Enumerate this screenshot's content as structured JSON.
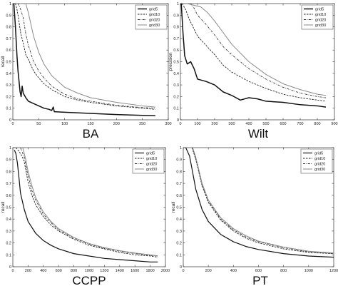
{
  "chart_data": [
    {
      "type": "line",
      "title": "BA",
      "xlabel": "",
      "ylabel": "recall",
      "xlim": [
        0,
        300
      ],
      "ylim": [
        0,
        1
      ],
      "xticks": [
        "0",
        "50",
        "100",
        "150",
        "200",
        "250",
        "300"
      ],
      "yticks": [
        "0",
        "0.1",
        "0.2",
        "0.3",
        "0.4",
        "0.5",
        "0.6",
        "0.7",
        "0.8",
        "0.9",
        "1"
      ],
      "legend": "top-right",
      "grid": false,
      "series": [
        {
          "name": "grid5",
          "style": "solid-thick",
          "color": "#111111",
          "x": [
            2,
            5,
            8,
            10,
            12,
            14,
            16,
            18,
            20,
            25,
            30,
            40,
            50,
            60,
            70,
            75,
            78,
            80,
            100,
            150,
            200,
            250,
            275
          ],
          "y": [
            1.0,
            0.8,
            0.55,
            0.42,
            0.33,
            0.24,
            0.2,
            0.29,
            0.23,
            0.19,
            0.16,
            0.14,
            0.12,
            0.1,
            0.09,
            0.08,
            0.11,
            0.07,
            0.065,
            0.055,
            0.045,
            0.038,
            0.035
          ]
        },
        {
          "name": "grid10",
          "style": "dashed",
          "color": "#222222",
          "x": [
            5,
            8,
            10,
            15,
            20,
            25,
            30,
            40,
            50,
            60,
            75,
            100,
            125,
            150,
            200,
            250,
            275
          ],
          "y": [
            1.0,
            0.95,
            0.9,
            0.75,
            0.66,
            0.56,
            0.52,
            0.42,
            0.36,
            0.31,
            0.26,
            0.2,
            0.17,
            0.15,
            0.12,
            0.1,
            0.09
          ]
        },
        {
          "name": "grid20",
          "style": "dashdot",
          "color": "#333333",
          "x": [
            10,
            15,
            20,
            25,
            30,
            40,
            50,
            60,
            75,
            100,
            125,
            150,
            200,
            250,
            275
          ],
          "y": [
            1.0,
            0.95,
            0.88,
            0.74,
            0.64,
            0.5,
            0.42,
            0.36,
            0.29,
            0.22,
            0.18,
            0.16,
            0.125,
            0.105,
            0.1
          ]
        },
        {
          "name": "grid30",
          "style": "solid-gray",
          "color": "#8a8a8a",
          "x": [
            25,
            30,
            35,
            40,
            50,
            60,
            75,
            100,
            125,
            150,
            200,
            250,
            275
          ],
          "y": [
            1.0,
            0.92,
            0.82,
            0.72,
            0.58,
            0.48,
            0.38,
            0.28,
            0.23,
            0.19,
            0.15,
            0.12,
            0.11
          ]
        }
      ]
    },
    {
      "type": "line",
      "title": "Wilt",
      "xlabel": "",
      "ylabel": "precision",
      "xlim": [
        0,
        900
      ],
      "ylim": [
        0,
        1
      ],
      "xticks": [
        "0",
        "100",
        "200",
        "300",
        "400",
        "500",
        "600",
        "700",
        "800",
        "900"
      ],
      "yticks": [
        "0",
        "0.1",
        "0.2",
        "0.3",
        "0.4",
        "0.5",
        "0.6",
        "0.7",
        "0.8",
        "0.9",
        "1"
      ],
      "legend": "top-right",
      "grid": false,
      "series": [
        {
          "name": "grid5",
          "style": "solid-thick",
          "color": "#111111",
          "x": [
            5,
            15,
            25,
            40,
            60,
            80,
            100,
            150,
            200,
            250,
            300,
            350,
            400,
            450,
            500,
            600,
            700,
            800,
            850
          ],
          "y": [
            1.0,
            0.75,
            0.55,
            0.48,
            0.5,
            0.44,
            0.35,
            0.33,
            0.3,
            0.24,
            0.21,
            0.17,
            0.19,
            0.18,
            0.16,
            0.15,
            0.13,
            0.12,
            0.11
          ]
        },
        {
          "name": "grid10",
          "style": "dashed",
          "color": "#222222",
          "x": [
            10,
            30,
            50,
            80,
            100,
            150,
            200,
            250,
            300,
            400,
            500,
            600,
            700,
            800,
            850
          ],
          "y": [
            1.0,
            0.95,
            0.87,
            0.78,
            0.72,
            0.64,
            0.56,
            0.47,
            0.41,
            0.33,
            0.27,
            0.22,
            0.19,
            0.17,
            0.16
          ]
        },
        {
          "name": "grid20",
          "style": "dashdot",
          "color": "#333333",
          "x": [
            60,
            80,
            100,
            150,
            200,
            250,
            300,
            400,
            500,
            600,
            700,
            800,
            850
          ],
          "y": [
            1.0,
            0.96,
            0.9,
            0.82,
            0.73,
            0.63,
            0.56,
            0.44,
            0.35,
            0.28,
            0.23,
            0.2,
            0.19
          ]
        },
        {
          "name": "grid30",
          "style": "solid-gray",
          "color": "#8a8a8a",
          "x": [
            40,
            120,
            160,
            200,
            250,
            300,
            400,
            500,
            600,
            700,
            800,
            850
          ],
          "y": [
            1.0,
            0.97,
            0.92,
            0.85,
            0.75,
            0.65,
            0.5,
            0.39,
            0.31,
            0.26,
            0.22,
            0.21
          ]
        }
      ]
    },
    {
      "type": "line",
      "title": "CCPP",
      "xlabel": "",
      "ylabel": "recall",
      "xlim": [
        0,
        2000
      ],
      "ylim": [
        0,
        1
      ],
      "xticks": [
        "0",
        "200",
        "400",
        "600",
        "800",
        "1000",
        "1200",
        "1400",
        "1600",
        "1800",
        "2000"
      ],
      "yticks": [
        "0",
        "0.1",
        "0.2",
        "0.3",
        "0.4",
        "0.5",
        "0.6",
        "0.7",
        "0.8",
        "0.9",
        "1"
      ],
      "legend": "top-right",
      "grid": false,
      "series": [
        {
          "name": "grid5",
          "style": "solid",
          "color": "#111111",
          "x": [
            20,
            40,
            60,
            80,
            100,
            150,
            200,
            300,
            400,
            500,
            600,
            800,
            1000,
            1200,
            1400,
            1600,
            1800,
            1900
          ],
          "y": [
            0.98,
            0.95,
            0.87,
            0.75,
            0.62,
            0.48,
            0.38,
            0.28,
            0.22,
            0.18,
            0.15,
            0.11,
            0.09,
            0.07,
            0.06,
            0.05,
            0.04,
            0.04
          ]
        },
        {
          "name": "grid10",
          "style": "dashed",
          "color": "#222222",
          "x": [
            40,
            80,
            120,
            150,
            200,
            250,
            300,
            400,
            500,
            600,
            800,
            1000,
            1200,
            1400,
            1600,
            1800,
            1900
          ],
          "y": [
            1.0,
            0.97,
            0.93,
            0.88,
            0.71,
            0.6,
            0.52,
            0.42,
            0.35,
            0.3,
            0.23,
            0.18,
            0.15,
            0.12,
            0.1,
            0.09,
            0.08
          ]
        },
        {
          "name": "grid20",
          "style": "dashdot",
          "color": "#333333",
          "x": [
            100,
            150,
            200,
            250,
            300,
            400,
            500,
            600,
            800,
            1000,
            1200,
            1400,
            1600,
            1800,
            1900
          ],
          "y": [
            1.0,
            0.92,
            0.76,
            0.64,
            0.56,
            0.44,
            0.37,
            0.31,
            0.24,
            0.19,
            0.155,
            0.13,
            0.11,
            0.095,
            0.09
          ]
        },
        {
          "name": "grid30",
          "style": "solid-gray",
          "color": "#8a8a8a",
          "x": [
            130,
            170,
            200,
            250,
            300,
            400,
            500,
            600,
            800,
            1000,
            1200,
            1400,
            1600,
            1800,
            1900
          ],
          "y": [
            1.0,
            0.9,
            0.8,
            0.68,
            0.58,
            0.46,
            0.38,
            0.32,
            0.245,
            0.195,
            0.16,
            0.135,
            0.115,
            0.1,
            0.092
          ]
        }
      ]
    },
    {
      "type": "line",
      "title": "PT",
      "xlabel": "",
      "ylabel": "recall",
      "xlim": [
        0,
        1200
      ],
      "ylim": [
        0,
        1
      ],
      "xticks": [
        "0",
        "200",
        "400",
        "600",
        "800",
        "1000",
        "1200"
      ],
      "yticks": [
        "0",
        "0.1",
        "0.2",
        "0.3",
        "0.4",
        "0.5",
        "0.6",
        "0.7",
        "0.8",
        "0.9",
        "1"
      ],
      "legend": "top-right",
      "grid": false,
      "series": [
        {
          "name": "grid5",
          "style": "solid",
          "color": "#111111",
          "x": [
            20,
            50,
            70,
            100,
            150,
            200,
            300,
            400,
            500,
            600,
            800,
            1000,
            1200
          ],
          "y": [
            1.0,
            0.93,
            0.82,
            0.65,
            0.48,
            0.38,
            0.27,
            0.21,
            0.17,
            0.145,
            0.11,
            0.09,
            0.08
          ]
        },
        {
          "name": "grid10",
          "style": "dashed",
          "color": "#222222",
          "x": [
            70,
            100,
            150,
            200,
            300,
            400,
            500,
            600,
            800,
            1000,
            1200
          ],
          "y": [
            1.0,
            0.9,
            0.68,
            0.54,
            0.39,
            0.3,
            0.24,
            0.2,
            0.15,
            0.12,
            0.11
          ]
        },
        {
          "name": "grid20",
          "style": "dashdot",
          "color": "#333333",
          "x": [
            72,
            100,
            150,
            200,
            300,
            400,
            500,
            600,
            800,
            1000,
            1200
          ],
          "y": [
            1.0,
            0.91,
            0.69,
            0.55,
            0.4,
            0.31,
            0.25,
            0.21,
            0.16,
            0.125,
            0.112
          ]
        },
        {
          "name": "grid30",
          "style": "solid-gray",
          "color": "#8a8a8a",
          "x": [
            75,
            100,
            150,
            200,
            300,
            400,
            500,
            600,
            800,
            1000,
            1200
          ],
          "y": [
            1.0,
            0.92,
            0.7,
            0.56,
            0.41,
            0.32,
            0.26,
            0.215,
            0.165,
            0.13,
            0.115
          ]
        }
      ]
    }
  ]
}
